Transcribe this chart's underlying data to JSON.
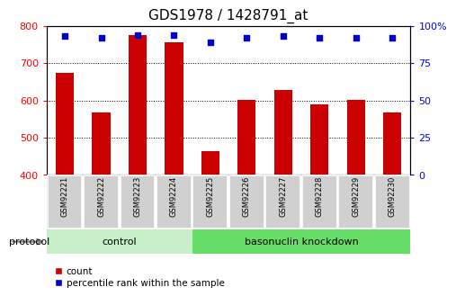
{
  "title": "GDS1978 / 1428791_at",
  "samples": [
    "GSM92221",
    "GSM92222",
    "GSM92223",
    "GSM92224",
    "GSM92225",
    "GSM92226",
    "GSM92227",
    "GSM92228",
    "GSM92229",
    "GSM92230"
  ],
  "counts": [
    675,
    568,
    775,
    755,
    465,
    602,
    628,
    590,
    602,
    568
  ],
  "percentile_ranks": [
    93,
    92,
    94,
    94,
    89,
    92,
    93,
    92,
    92,
    92
  ],
  "ylim_left": [
    400,
    800
  ],
  "ylim_right": [
    0,
    100
  ],
  "yticks_left": [
    400,
    500,
    600,
    700,
    800
  ],
  "yticks_right": [
    0,
    25,
    50,
    75,
    100
  ],
  "groups": [
    {
      "label": "control",
      "indices": [
        0,
        1,
        2,
        3
      ],
      "color": "#c8f0c8"
    },
    {
      "label": "basonuclin knockdown",
      "indices": [
        4,
        5,
        6,
        7,
        8,
        9
      ],
      "color": "#66dd66"
    }
  ],
  "bar_color": "#cc0000",
  "dot_color": "#0000cc",
  "bar_width": 0.5,
  "background_color": "#ffffff",
  "sample_box_color": "#d0d0d0",
  "legend_count_label": "count",
  "legend_pct_label": "percentile rank within the sample",
  "protocol_label": "protocol",
  "title_fontsize": 11,
  "tick_fontsize": 8,
  "sample_fontsize": 6
}
